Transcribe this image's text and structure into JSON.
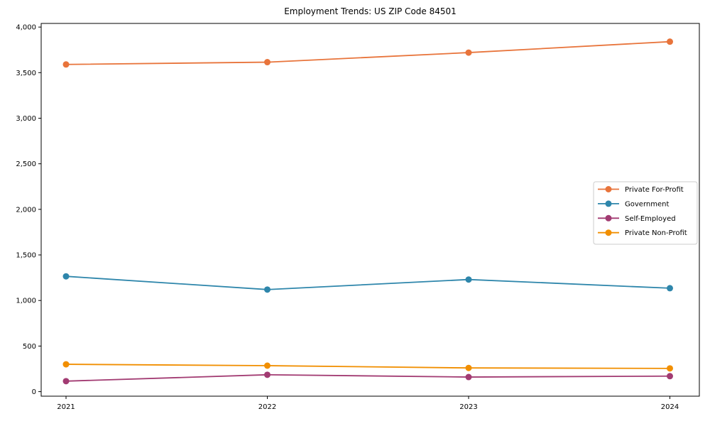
{
  "chart_data": {
    "type": "line",
    "title": "Employment Trends: US ZIP Code 84501",
    "xlabel": "",
    "ylabel": "",
    "x": [
      2021,
      2022,
      2023,
      2024
    ],
    "x_tick_labels": [
      "2021",
      "2022",
      "2023",
      "2024"
    ],
    "series": [
      {
        "name": "Private For-Profit",
        "color": "#e8743b",
        "values": [
          3590,
          3615,
          3720,
          3840
        ]
      },
      {
        "name": "Government",
        "color": "#2e86ab",
        "values": [
          1265,
          1120,
          1230,
          1135
        ]
      },
      {
        "name": "Self-Employed",
        "color": "#a23b72",
        "values": [
          115,
          185,
          160,
          170
        ]
      },
      {
        "name": "Private Non-Profit",
        "color": "#f18f01",
        "values": [
          300,
          285,
          260,
          255
        ]
      }
    ],
    "ylim": [
      -50,
      4040
    ],
    "yticks": [
      0,
      500,
      1000,
      1500,
      2000,
      2500,
      3000,
      3500,
      4000
    ],
    "ytick_labels": [
      "0",
      "500",
      "1,000",
      "1,500",
      "2,000",
      "2,500",
      "3,000",
      "3,500",
      "4,000"
    ],
    "grid": false,
    "legend_position": "center right",
    "marker": "circle",
    "line_width": 1.8,
    "marker_radius": 4.5,
    "axis_color": "#000000",
    "legend_border_color": "#cccccc",
    "background_color": "#ffffff"
  }
}
